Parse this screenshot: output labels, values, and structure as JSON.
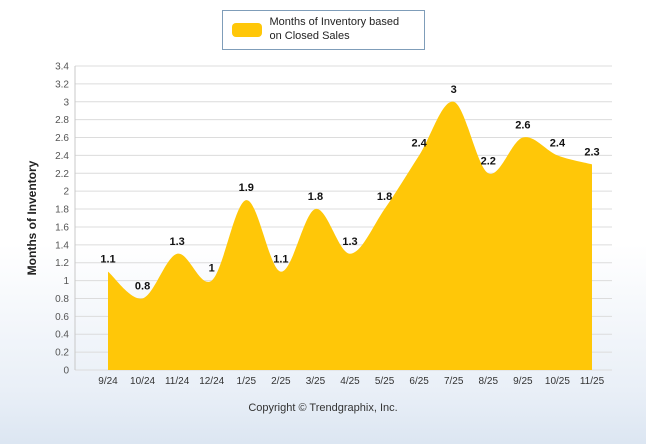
{
  "legend": {
    "label": "Months of Inventory based on Closed Sales"
  },
  "footer": "Copyright © Trendgraphix, Inc.",
  "chart_data": {
    "type": "area",
    "title": "Months of Inventory based on Closed Sales",
    "categories": [
      "9/24",
      "10/24",
      "11/24",
      "12/24",
      "1/25",
      "2/25",
      "3/25",
      "4/25",
      "5/25",
      "6/25",
      "7/25",
      "8/25",
      "9/25",
      "10/25",
      "11/25"
    ],
    "values": [
      1.1,
      0.8,
      1.3,
      1,
      1.9,
      1.1,
      1.8,
      1.3,
      1.8,
      2.4,
      3,
      2.2,
      2.6,
      2.4,
      2.3
    ],
    "xlabel": "",
    "ylabel": "Months of Inventory",
    "ylim": [
      0,
      3.4
    ],
    "ytick_step": 0.2,
    "grid": true,
    "legend_position": "top",
    "fill_color": "#FFC708",
    "grid_color": "#dcdcdc",
    "axis_color": "#c8c8c8"
  }
}
